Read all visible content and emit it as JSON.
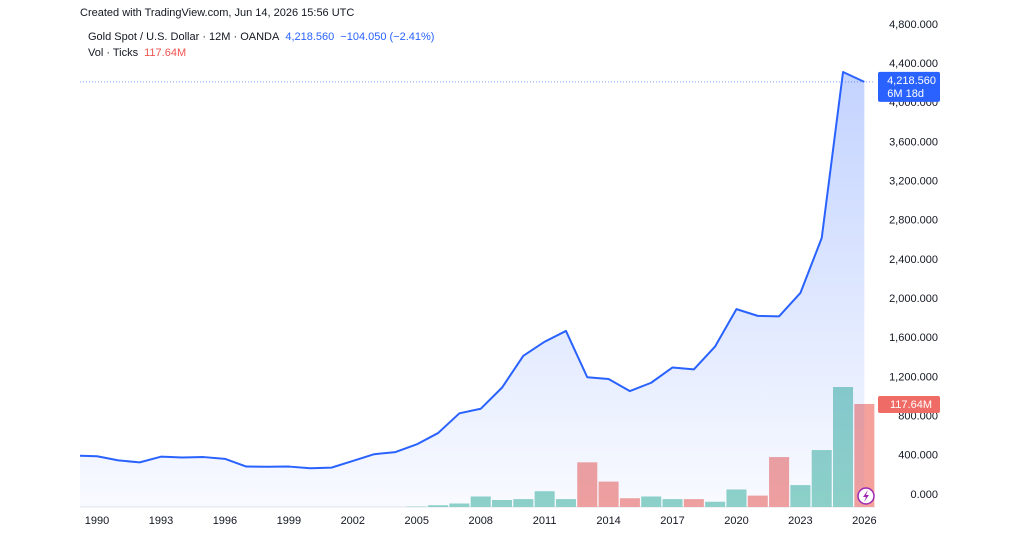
{
  "chart_data": {
    "type": "line",
    "title": "Created with TradingView.com, Jun 14, 2026 15:56 UTC",
    "x": [
      1989,
      1990,
      1991,
      1992,
      1993,
      1994,
      1995,
      1996,
      1997,
      1998,
      1999,
      2000,
      2001,
      2002,
      2003,
      2004,
      2005,
      2006,
      2007,
      2008,
      2009,
      2010,
      2011,
      2012,
      2013,
      2014,
      2015,
      2016,
      2017,
      2018,
      2019,
      2020,
      2021,
      2022,
      2023,
      2024,
      2025,
      2026
    ],
    "series": [
      {
        "name": "Gold Spot / U.S. Dollar · 12M · OANDA",
        "color": "#2962ff",
        "values": [
          401,
          395,
          353,
          333,
          391,
          383,
          387,
          369,
          290,
          288,
          290,
          273,
          279,
          347,
          416,
          438,
          517,
          632,
          834,
          880,
          1096,
          1421,
          1565,
          1675,
          1202,
          1184,
          1061,
          1146,
          1302,
          1282,
          1517,
          1898,
          1829,
          1824,
          2063,
          2624,
          4320,
          4218.56
        ],
        "last_label": "4,218.560",
        "change_label": "−104.050 (−2.41%)",
        "countdown": "6M 18d"
      },
      {
        "name": "Vol · Ticks",
        "up_color": "#8fd3c7",
        "down_color": "#f4a19c",
        "badge_color": "#ef6b66",
        "values": [
          null,
          null,
          null,
          null,
          null,
          null,
          null,
          null,
          null,
          null,
          null,
          null,
          null,
          null,
          null,
          null,
          0.5,
          2,
          4,
          12,
          8,
          9,
          18,
          9,
          51,
          29,
          10,
          12,
          9,
          9,
          6,
          20,
          13,
          57,
          25,
          65,
          137,
          117.64
        ],
        "value_labels": [
          null,
          null,
          null,
          null,
          null,
          null,
          null,
          null,
          null,
          null,
          null,
          null,
          null,
          null,
          null,
          null,
          null,
          null,
          null,
          null,
          null,
          null,
          null,
          null,
          null,
          null,
          null,
          null,
          null,
          null,
          null,
          null,
          null,
          null,
          null,
          null,
          null,
          "117.64M"
        ]
      }
    ],
    "xlim": [
      1989.2,
      2026.5
    ],
    "xticks": [
      1990,
      1993,
      1996,
      1999,
      2002,
      2005,
      2008,
      2011,
      2014,
      2017,
      2020,
      2023,
      2026
    ],
    "ylim": [
      -123,
      4912
    ],
    "yticks": [
      {
        "value": 0,
        "label": "0.000"
      },
      {
        "value": 400,
        "label": "400.000"
      },
      {
        "value": 800,
        "label": "800.000"
      },
      {
        "value": 1200,
        "label": "1,200.000"
      },
      {
        "value": 1600,
        "label": "1,600.000"
      },
      {
        "value": 2000,
        "label": "2,000.000"
      },
      {
        "value": 2400,
        "label": "2,400.000"
      },
      {
        "value": 2800,
        "label": "2,800.000"
      },
      {
        "value": 3200,
        "label": "3,200.000"
      },
      {
        "value": 3600,
        "label": "3,600.000"
      },
      {
        "value": 4000,
        "label": "4,000.000"
      },
      {
        "value": 4400,
        "label": "4,400.000"
      },
      {
        "value": 4800,
        "label": "4,800.000"
      }
    ],
    "grid": false
  }
}
